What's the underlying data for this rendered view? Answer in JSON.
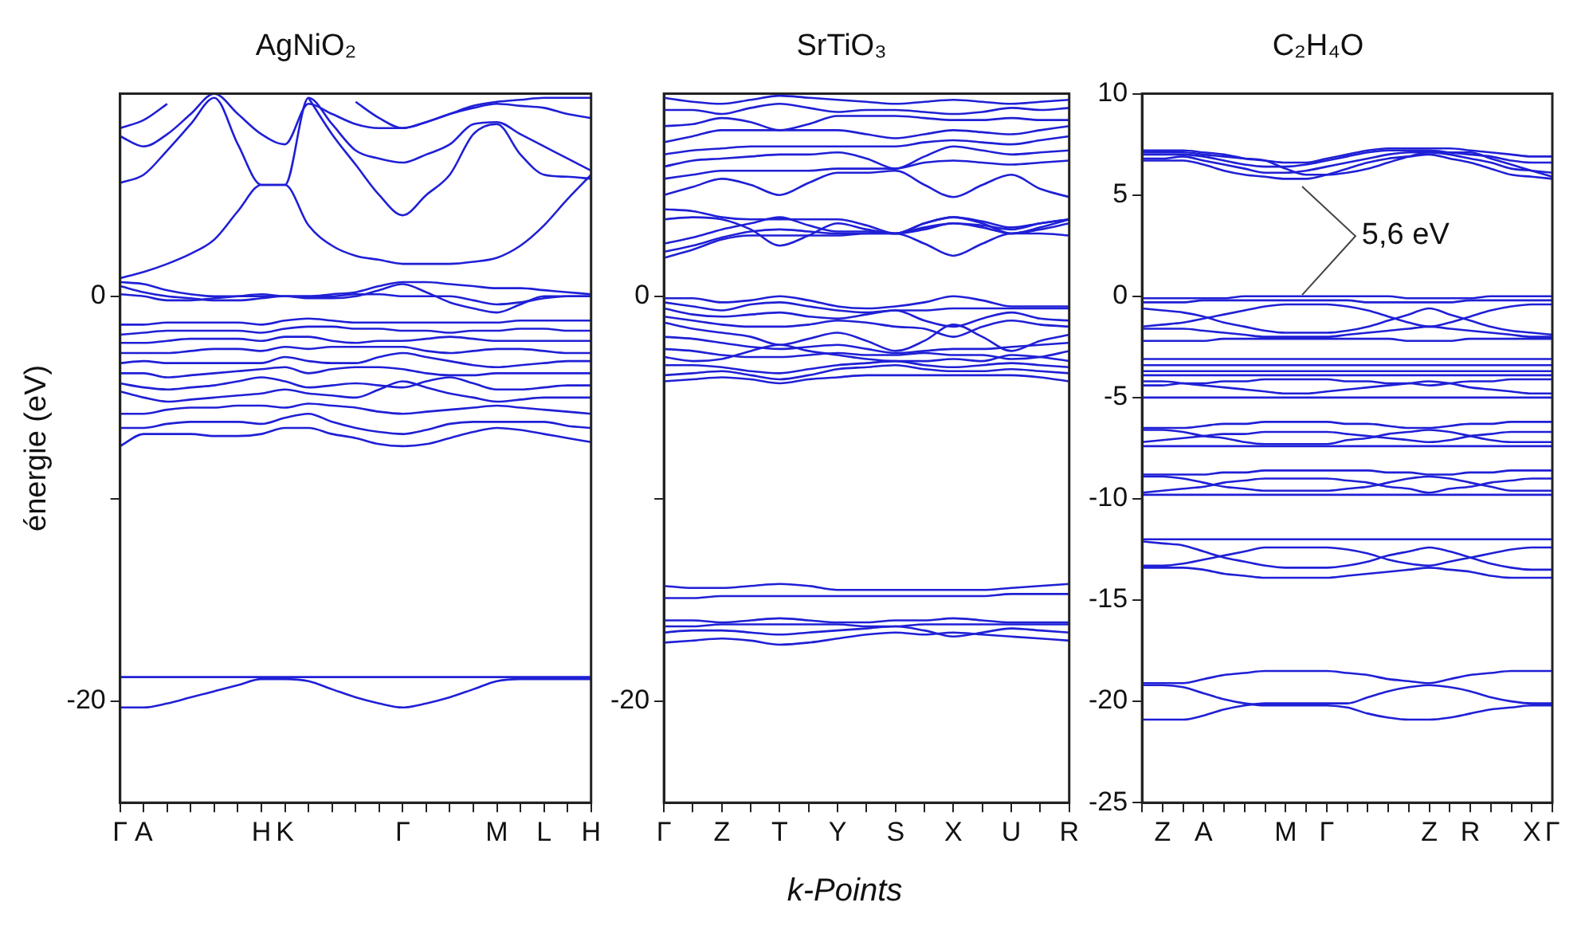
{
  "chart_data": [
    {
      "type": "line",
      "title": "AgNiO₂",
      "ylabel": "énergie (eV)",
      "marker": "none",
      "line_style": "solid",
      "ylim": [
        -25,
        10
      ],
      "categories": [
        "Γ",
        "A",
        null,
        null,
        null,
        null,
        "H",
        "K",
        null,
        null,
        null,
        null,
        "Γ",
        null,
        null,
        null,
        "M",
        null,
        "L",
        null,
        "H"
      ],
      "yticks": [
        -20,
        {
          "value": -10,
          "label": null
        },
        0
      ],
      "series": [
        {
          "color": "#1f1fd6",
          "values": [
            -18.8,
            -18.8,
            -18.8,
            -18.8,
            -18.8,
            -18.8,
            -18.8,
            -18.8,
            -18.8,
            -18.8,
            -18.8,
            -18.8,
            -18.8,
            -18.8,
            -18.8,
            -18.8,
            -18.8,
            -18.8,
            -18.8,
            -18.8,
            -18.8
          ]
        },
        {
          "color": "#1f1fd6",
          "values": [
            -20.3,
            -20.3,
            -20.1,
            -19.8,
            -19.5,
            -19.2,
            -18.9,
            -18.9,
            -19.0,
            -19.4,
            -19.8,
            -20.1,
            -20.3,
            -20.1,
            -19.8,
            -19.4,
            -19.0,
            -18.9,
            -18.9,
            -18.9,
            -18.9
          ]
        },
        {
          "color": "#1f1fd6",
          "values": [
            -7.4,
            -6.8,
            -6.8,
            -6.8,
            -6.9,
            -6.9,
            -6.8,
            -6.5,
            -6.5,
            -6.8,
            -7.0,
            -7.3,
            -7.4,
            -7.3,
            -7.0,
            -6.7,
            -6.5,
            -6.6,
            -6.8,
            -7.0,
            -7.2
          ]
        },
        {
          "color": "#1f1fd6",
          "values": [
            -6.5,
            -6.5,
            -6.3,
            -6.2,
            -6.2,
            -6.2,
            -6.3,
            -6.0,
            -5.8,
            -6.2,
            -6.5,
            -6.7,
            -6.8,
            -6.6,
            -6.3,
            -6.2,
            -6.2,
            -6.2,
            -6.2,
            -6.4,
            -6.5
          ]
        },
        {
          "color": "#1f1fd6",
          "values": [
            -5.8,
            -5.8,
            -5.6,
            -5.5,
            -5.5,
            -5.4,
            -5.4,
            -5.5,
            -5.3,
            -5.4,
            -5.5,
            -5.7,
            -5.8,
            -5.7,
            -5.6,
            -5.5,
            -5.4,
            -5.5,
            -5.6,
            -5.7,
            -5.8
          ]
        },
        {
          "color": "#1f1fd6",
          "values": [
            -4.7,
            -5.0,
            -5.2,
            -5.1,
            -5.0,
            -4.9,
            -4.8,
            -4.6,
            -4.8,
            -4.9,
            -5.0,
            -4.6,
            -4.2,
            -4.5,
            -4.8,
            -5.0,
            -5.2,
            -5.1,
            -5.0,
            -5.0,
            -5.0
          ]
        },
        {
          "color": "#1f1fd6",
          "values": [
            -4.3,
            -4.5,
            -4.6,
            -4.5,
            -4.4,
            -4.2,
            -4.0,
            -4.2,
            -4.5,
            -4.4,
            -4.3,
            -4.4,
            -4.5,
            -4.2,
            -4.0,
            -4.3,
            -4.6,
            -4.6,
            -4.5,
            -4.4,
            -4.4
          ]
        },
        {
          "color": "#1f1fd6",
          "values": [
            -3.8,
            -3.8,
            -4.0,
            -3.9,
            -3.8,
            -3.7,
            -3.6,
            -3.5,
            -3.8,
            -3.6,
            -3.5,
            -3.5,
            -3.6,
            -3.8,
            -3.9,
            -3.9,
            -3.8,
            -3.8,
            -3.8,
            -3.8,
            -3.8
          ]
        },
        {
          "color": "#1f1fd6",
          "values": [
            -3.3,
            -3.2,
            -3.3,
            -3.3,
            -3.3,
            -3.3,
            -3.3,
            -3.0,
            -3.2,
            -3.3,
            -3.3,
            -3.0,
            -2.8,
            -3.0,
            -3.2,
            -3.4,
            -3.5,
            -3.4,
            -3.3,
            -3.2,
            -3.2
          ]
        },
        {
          "color": "#1f1fd6",
          "values": [
            -2.8,
            -2.8,
            -2.8,
            -2.7,
            -2.6,
            -2.6,
            -2.7,
            -2.5,
            -2.6,
            -2.5,
            -2.5,
            -2.5,
            -2.5,
            -2.7,
            -2.8,
            -2.7,
            -2.6,
            -2.6,
            -2.7,
            -2.8,
            -2.8
          ]
        },
        {
          "color": "#1f1fd6",
          "values": [
            -2.3,
            -2.3,
            -2.2,
            -2.1,
            -2.1,
            -2.1,
            -2.2,
            -2.0,
            -2.0,
            -2.2,
            -2.3,
            -2.2,
            -2.2,
            -2.1,
            -2.0,
            -2.1,
            -2.2,
            -2.2,
            -2.2,
            -2.2,
            -2.2
          ]
        },
        {
          "color": "#1f1fd6",
          "values": [
            -1.9,
            -1.8,
            -1.7,
            -1.7,
            -1.7,
            -1.7,
            -1.8,
            -1.6,
            -1.5,
            -1.5,
            -1.6,
            -1.6,
            -1.7,
            -1.7,
            -1.8,
            -1.7,
            -1.7,
            -1.6,
            -1.6,
            -1.7,
            -1.7
          ]
        },
        {
          "color": "#1f1fd6",
          "values": [
            -1.4,
            -1.4,
            -1.3,
            -1.3,
            -1.3,
            -1.3,
            -1.4,
            -1.2,
            -1.1,
            -1.2,
            -1.3,
            -1.3,
            -1.3,
            -1.3,
            -1.3,
            -1.3,
            -1.3,
            -1.2,
            -1.2,
            -1.2,
            -1.2
          ]
        },
        {
          "color": "#1f1fd6",
          "values": [
            0.7,
            0.6,
            0.3,
            0.1,
            0.0,
            0.0,
            0.0,
            0.0,
            0.0,
            0.1,
            0.2,
            0.5,
            0.7,
            0.7,
            0.6,
            0.5,
            0.4,
            0.4,
            0.3,
            0.2,
            0.1
          ]
        },
        {
          "color": "#1f1fd6",
          "values": [
            0.5,
            0.2,
            0.0,
            -0.1,
            -0.2,
            -0.2,
            -0.1,
            0.0,
            -0.1,
            -0.1,
            0.0,
            0.3,
            0.6,
            0.2,
            -0.3,
            -0.6,
            -0.8,
            -0.4,
            0.0,
            0.0,
            0.0
          ]
        },
        {
          "color": "#1f1fd6",
          "values": [
            0.1,
            0.0,
            -0.2,
            -0.2,
            -0.1,
            0.0,
            0.1,
            0.0,
            0.0,
            0.0,
            0.1,
            0.1,
            0.0,
            0.0,
            0.0,
            -0.2,
            -0.4,
            -0.3,
            -0.1,
            0.0,
            0.0
          ]
        },
        {
          "color": "#1f1fd6",
          "values": [
            0.9,
            1.2,
            1.6,
            2.1,
            2.8,
            4.2,
            5.5,
            5.5,
            3.5,
            2.5,
            2.0,
            1.8,
            1.6,
            1.6,
            1.6,
            1.7,
            1.9,
            2.5,
            3.5,
            4.8,
            6.0
          ]
        },
        {
          "color": "#1f1fd6",
          "values": [
            5.6,
            6.0,
            7.2,
            8.5,
            9.8,
            7.5,
            5.5,
            5.5,
            9.8,
            8.5,
            7.2,
            6.8,
            6.6,
            7.0,
            7.5,
            8.5,
            8.6,
            8.0,
            7.4,
            6.8,
            6.2
          ]
        },
        {
          "color": "#1f1fd6",
          "values": [
            7.9,
            7.4,
            8.0,
            9.0,
            10.0,
            9.0,
            8.0,
            7.5,
            9.5,
            9.0,
            8.5,
            8.3,
            8.3,
            8.6,
            9.0,
            9.3,
            9.5,
            9.4,
            9.3,
            9.0,
            8.8
          ]
        },
        {
          "color": "#1f1fd6",
          "values": [
            null,
            null,
            null,
            null,
            null,
            null,
            null,
            null,
            9.8,
            8.0,
            6.5,
            5.0,
            4.0,
            5.0,
            6.0,
            8.0,
            8.5,
            7.0,
            6.0,
            5.9,
            5.8
          ]
        },
        {
          "color": "#1f1fd6",
          "values": [
            8.3,
            8.7,
            9.5,
            null,
            null,
            null,
            null,
            null,
            null,
            null,
            9.6,
            8.8,
            8.3,
            8.6,
            9.0,
            9.4,
            9.6,
            9.7,
            9.8,
            9.8,
            9.8
          ]
        }
      ]
    },
    {
      "type": "line",
      "title": "SrTiO₃",
      "xlabel": "k-Points",
      "marker": "none",
      "line_style": "solid",
      "ylim": [
        -25,
        10
      ],
      "categories": [
        "Γ",
        null,
        "Z",
        null,
        "T",
        null,
        "Y",
        null,
        "S",
        null,
        "X",
        null,
        "U",
        null,
        "R"
      ],
      "yticks": [
        -20,
        {
          "value": -10,
          "label": null
        },
        0
      ],
      "series": [
        {
          "color": "#1f1fd6",
          "values": [
            -14.3,
            -14.4,
            -14.4,
            -14.3,
            -14.2,
            -14.3,
            -14.5,
            -14.5,
            -14.5,
            -14.5,
            -14.5,
            -14.5,
            -14.4,
            -14.3,
            -14.2
          ]
        },
        {
          "color": "#1f1fd6",
          "values": [
            -14.9,
            -14.9,
            -14.8,
            -14.8,
            -14.8,
            -14.8,
            -14.8,
            -14.8,
            -14.8,
            -14.8,
            -14.8,
            -14.8,
            -14.7,
            -14.7,
            -14.7
          ]
        },
        {
          "color": "#1f1fd6",
          "values": [
            -16.0,
            -16.0,
            -16.1,
            -16.0,
            -15.9,
            -16.0,
            -16.1,
            -16.1,
            -16.0,
            -16.0,
            -15.9,
            -16.0,
            -16.1,
            -16.1,
            -16.1
          ]
        },
        {
          "color": "#1f1fd6",
          "values": [
            -16.3,
            -16.3,
            -16.2,
            -16.2,
            -16.2,
            -16.2,
            -16.2,
            -16.3,
            -16.3,
            -16.2,
            -16.2,
            -16.2,
            -16.2,
            -16.2,
            -16.2
          ]
        },
        {
          "color": "#1f1fd6",
          "values": [
            -16.6,
            -16.5,
            -16.5,
            -16.6,
            -16.7,
            -16.6,
            -16.5,
            -16.4,
            -16.3,
            -16.5,
            -16.8,
            -16.6,
            -16.4,
            -16.5,
            -16.6
          ]
        },
        {
          "color": "#1f1fd6",
          "values": [
            -17.1,
            -17.0,
            -16.9,
            -17.0,
            -17.2,
            -17.1,
            -16.9,
            -16.7,
            -16.6,
            -16.7,
            -16.6,
            -16.7,
            -16.8,
            -16.9,
            -17.0
          ]
        },
        {
          "color": "#1f1fd6",
          "values": [
            -0.1,
            -0.1,
            -0.3,
            -0.2,
            0.0,
            -0.2,
            -0.5,
            -0.6,
            -0.5,
            -0.3,
            0.0,
            -0.2,
            -0.5,
            -0.5,
            -0.5
          ]
        },
        {
          "color": "#1f1fd6",
          "values": [
            -0.3,
            -0.5,
            -0.7,
            -0.4,
            -0.3,
            -0.5,
            -0.7,
            -0.8,
            -0.7,
            -0.7,
            -0.6,
            -0.6,
            -0.6,
            -0.6,
            -0.6
          ]
        },
        {
          "color": "#1f1fd6",
          "values": [
            -0.6,
            -0.9,
            -1.0,
            -0.9,
            -0.8,
            -1.0,
            -1.1,
            -0.9,
            -0.7,
            -1.2,
            -1.5,
            -1.1,
            -0.8,
            -1.1,
            -1.2
          ]
        },
        {
          "color": "#1f1fd6",
          "values": [
            -1.0,
            -1.2,
            -1.4,
            -1.5,
            -1.5,
            -1.4,
            -1.2,
            -1.3,
            -1.5,
            -1.6,
            -2.0,
            -1.5,
            -1.2,
            -1.4,
            -1.5
          ]
        },
        {
          "color": "#1f1fd6",
          "values": [
            -1.3,
            -1.6,
            -1.8,
            -2.0,
            -2.4,
            -2.1,
            -1.8,
            -2.2,
            -2.7,
            -2.2,
            -1.4,
            -2.0,
            -2.7,
            -2.2,
            -1.9
          ]
        },
        {
          "color": "#1f1fd6",
          "values": [
            -2.0,
            -2.1,
            -2.3,
            -2.5,
            -2.6,
            -2.5,
            -2.4,
            -2.6,
            -2.8,
            -2.7,
            -2.6,
            -2.6,
            -2.5,
            -2.4,
            -2.3
          ]
        },
        {
          "color": "#1f1fd6",
          "values": [
            -2.6,
            -2.7,
            -2.9,
            -3.0,
            -3.0,
            -2.9,
            -2.8,
            -2.9,
            -2.9,
            -2.8,
            -2.9,
            -2.9,
            -3.1,
            -3.0,
            -2.7
          ]
        },
        {
          "color": "#1f1fd6",
          "values": [
            -3.0,
            -3.2,
            -3.1,
            -2.7,
            -2.4,
            -2.7,
            -2.9,
            -3.1,
            -3.2,
            -3.2,
            -3.1,
            -3.2,
            -2.9,
            -3.0,
            -3.2
          ]
        },
        {
          "color": "#1f1fd6",
          "values": [
            -3.4,
            -3.4,
            -3.5,
            -3.7,
            -3.8,
            -3.6,
            -3.4,
            -3.3,
            -3.2,
            -3.4,
            -3.5,
            -3.4,
            -3.3,
            -3.4,
            -3.5
          ]
        },
        {
          "color": "#1f1fd6",
          "values": [
            -3.9,
            -3.8,
            -3.7,
            -3.9,
            -4.1,
            -3.9,
            -3.6,
            -3.5,
            -3.4,
            -3.6,
            -3.7,
            -3.7,
            -3.6,
            -3.7,
            -3.8
          ]
        },
        {
          "color": "#1f1fd6",
          "values": [
            -4.2,
            -4.1,
            -4.0,
            -4.1,
            -4.3,
            -4.1,
            -4.0,
            -3.9,
            -3.9,
            -3.9,
            -3.9,
            -3.9,
            -3.9,
            -4.0,
            -4.2
          ]
        },
        {
          "color": "#1f1fd6",
          "values": [
            1.9,
            2.3,
            2.8,
            3.0,
            3.0,
            3.0,
            3.0,
            3.1,
            3.1,
            2.6,
            2.0,
            2.6,
            3.1,
            3.1,
            3.0
          ]
        },
        {
          "color": "#1f1fd6",
          "values": [
            2.2,
            2.5,
            2.9,
            3.2,
            3.3,
            3.2,
            3.1,
            3.1,
            3.1,
            3.4,
            3.6,
            3.4,
            3.1,
            3.3,
            3.6
          ]
        },
        {
          "color": "#1f1fd6",
          "values": [
            2.6,
            2.9,
            3.3,
            3.6,
            3.9,
            3.5,
            3.2,
            3.2,
            3.1,
            3.6,
            3.9,
            3.6,
            3.1,
            3.4,
            3.8
          ]
        },
        {
          "color": "#1f1fd6",
          "values": [
            3.8,
            3.9,
            3.8,
            3.3,
            2.5,
            3.0,
            3.6,
            3.3,
            3.1,
            3.6,
            3.9,
            3.7,
            3.4,
            3.6,
            3.8
          ]
        },
        {
          "color": "#1f1fd6",
          "values": [
            4.3,
            4.2,
            3.9,
            3.8,
            3.8,
            3.8,
            3.8,
            3.5,
            3.1,
            3.3,
            3.6,
            3.5,
            3.3,
            3.6,
            3.8
          ]
        },
        {
          "color": "#1f1fd6",
          "values": [
            5.0,
            5.4,
            5.8,
            5.5,
            5.0,
            5.6,
            6.1,
            6.1,
            6.2,
            5.5,
            4.9,
            5.5,
            6.0,
            5.3,
            4.9
          ]
        },
        {
          "color": "#1f1fd6",
          "values": [
            5.8,
            6.0,
            6.2,
            6.2,
            6.2,
            6.2,
            6.3,
            6.3,
            6.3,
            6.6,
            6.7,
            6.6,
            6.5,
            6.6,
            6.7
          ]
        },
        {
          "color": "#1f1fd6",
          "values": [
            6.4,
            6.7,
            6.8,
            6.9,
            7.0,
            7.0,
            7.1,
            6.8,
            6.3,
            6.9,
            7.4,
            7.2,
            7.0,
            7.1,
            7.2
          ]
        },
        {
          "color": "#1f1fd6",
          "values": [
            7.0,
            7.2,
            7.3,
            7.4,
            7.4,
            7.4,
            7.4,
            7.4,
            7.4,
            7.6,
            7.7,
            7.6,
            7.5,
            7.7,
            7.9
          ]
        },
        {
          "color": "#1f1fd6",
          "values": [
            7.6,
            7.9,
            8.2,
            8.2,
            8.2,
            8.2,
            8.2,
            8.0,
            7.8,
            8.0,
            8.2,
            8.1,
            8.0,
            8.2,
            8.4
          ]
        },
        {
          "color": "#1f1fd6",
          "values": [
            8.4,
            8.5,
            8.8,
            8.6,
            8.2,
            8.5,
            8.9,
            8.9,
            8.9,
            8.8,
            8.7,
            8.7,
            8.8,
            8.7,
            8.7
          ]
        },
        {
          "color": "#1f1fd6",
          "values": [
            9.2,
            9.2,
            9.0,
            9.3,
            9.5,
            9.3,
            9.1,
            9.2,
            9.2,
            9.1,
            9.0,
            9.1,
            9.3,
            9.2,
            9.3
          ]
        },
        {
          "color": "#1f1fd6",
          "values": [
            9.8,
            9.6,
            9.5,
            9.7,
            9.9,
            9.8,
            9.7,
            9.6,
            9.5,
            9.6,
            9.7,
            9.6,
            9.5,
            9.6,
            9.7
          ]
        }
      ]
    },
    {
      "type": "line",
      "title": "C₂H₄O",
      "marker": "none",
      "line_style": "solid",
      "ylim": [
        -25,
        10
      ],
      "annotations": [
        "5,6 eV"
      ],
      "categories": [
        null,
        "Z",
        null,
        "A",
        null,
        null,
        null,
        "M",
        null,
        "Γ",
        null,
        null,
        null,
        null,
        "Z",
        null,
        "R",
        null,
        null,
        "X",
        "Γ"
      ],
      "yticks": [
        10,
        5,
        0,
        -5,
        -10,
        -15,
        -20,
        -25
      ],
      "series": [
        {
          "color": "#1f1fd6",
          "values": [
            -19.1,
            -19.1,
            -19.1,
            -18.9,
            -18.7,
            -18.6,
            -18.5,
            -18.5,
            -18.5,
            -18.5,
            -18.6,
            -18.7,
            -18.9,
            -19.0,
            -19.1,
            -18.9,
            -18.7,
            -18.6,
            -18.5,
            -18.5,
            -18.5
          ]
        },
        {
          "color": "#1f1fd6",
          "values": [
            -20.9,
            -20.9,
            -20.9,
            -20.7,
            -20.4,
            -20.2,
            -20.1,
            -20.1,
            -20.1,
            -20.1,
            -20.1,
            -19.8,
            -19.5,
            -19.3,
            -19.2,
            -19.3,
            -19.5,
            -19.8,
            -20.0,
            -20.1,
            -20.1
          ]
        },
        {
          "color": "#1f1fd6",
          "values": [
            -19.2,
            -19.2,
            -19.3,
            -19.6,
            -19.9,
            -20.1,
            -20.2,
            -20.2,
            -20.2,
            -20.2,
            -20.3,
            -20.6,
            -20.8,
            -20.9,
            -20.9,
            -20.8,
            -20.6,
            -20.4,
            -20.3,
            -20.2,
            -20.2
          ]
        },
        {
          "color": "#1f1fd6",
          "values": [
            -12.0,
            -12.0,
            -12.0,
            -12.0,
            -12.0,
            -12.0,
            -12.0,
            -12.0,
            -12.0,
            -12.0,
            -12.0,
            -12.0,
            -12.0,
            -12.0,
            -12.0,
            -12.0,
            -12.0,
            -12.0,
            -12.0,
            -12.0,
            -12.0
          ]
        },
        {
          "color": "#1f1fd6",
          "values": [
            -13.3,
            -13.3,
            -13.2,
            -13.0,
            -12.8,
            -12.6,
            -12.4,
            -12.4,
            -12.4,
            -12.4,
            -12.5,
            -12.7,
            -13.0,
            -13.2,
            -13.3,
            -13.1,
            -12.9,
            -12.7,
            -12.5,
            -12.4,
            -12.4
          ]
        },
        {
          "color": "#1f1fd6",
          "values": [
            -12.1,
            -12.2,
            -12.3,
            -12.6,
            -12.9,
            -13.1,
            -13.3,
            -13.4,
            -13.4,
            -13.4,
            -13.3,
            -13.1,
            -12.8,
            -12.6,
            -12.4,
            -12.6,
            -12.9,
            -13.2,
            -13.4,
            -13.5,
            -13.5
          ]
        },
        {
          "color": "#1f1fd6",
          "values": [
            -13.4,
            -13.4,
            -13.4,
            -13.5,
            -13.7,
            -13.8,
            -13.9,
            -13.9,
            -13.9,
            -13.9,
            -13.8,
            -13.7,
            -13.6,
            -13.5,
            -13.4,
            -13.5,
            -13.6,
            -13.8,
            -13.9,
            -13.9,
            -13.9
          ]
        },
        {
          "color": "#1f1fd6",
          "values": [
            -8.8,
            -8.8,
            -8.8,
            -8.8,
            -8.7,
            -8.7,
            -8.6,
            -8.6,
            -8.6,
            -8.6,
            -8.6,
            -8.6,
            -8.7,
            -8.7,
            -8.8,
            -8.8,
            -8.7,
            -8.7,
            -8.6,
            -8.6,
            -8.6
          ]
        },
        {
          "color": "#1f1fd6",
          "values": [
            -9.7,
            -9.6,
            -9.5,
            -9.4,
            -9.2,
            -9.1,
            -9.0,
            -9.0,
            -9.0,
            -9.0,
            -9.1,
            -9.2,
            -9.4,
            -9.5,
            -9.7,
            -9.5,
            -9.4,
            -9.2,
            -9.1,
            -9.0,
            -9.0
          ]
        },
        {
          "color": "#1f1fd6",
          "values": [
            -8.9,
            -8.9,
            -9.0,
            -9.2,
            -9.4,
            -9.5,
            -9.6,
            -9.6,
            -9.6,
            -9.6,
            -9.5,
            -9.4,
            -9.2,
            -9.0,
            -8.9,
            -9.0,
            -9.2,
            -9.4,
            -9.6,
            -9.6,
            -9.6
          ]
        },
        {
          "color": "#1f1fd6",
          "values": [
            -9.8,
            -9.8,
            -9.8,
            -9.8,
            -9.8,
            -9.8,
            -9.8,
            -9.8,
            -9.8,
            -9.8,
            -9.8,
            -9.8,
            -9.8,
            -9.8,
            -9.8,
            -9.8,
            -9.8,
            -9.8,
            -9.8,
            -9.8,
            -9.8
          ]
        },
        {
          "color": "#1f1fd6",
          "values": [
            -6.5,
            -6.5,
            -6.5,
            -6.4,
            -6.3,
            -6.3,
            -6.2,
            -6.2,
            -6.2,
            -6.2,
            -6.3,
            -6.3,
            -6.4,
            -6.5,
            -6.5,
            -6.4,
            -6.3,
            -6.3,
            -6.2,
            -6.2,
            -6.2
          ]
        },
        {
          "color": "#1f1fd6",
          "values": [
            -7.2,
            -7.1,
            -7.0,
            -6.9,
            -6.8,
            -6.8,
            -6.7,
            -6.7,
            -6.7,
            -6.7,
            -6.8,
            -6.9,
            -7.0,
            -7.1,
            -7.2,
            -7.1,
            -6.9,
            -6.8,
            -6.7,
            -6.7,
            -6.7
          ]
        },
        {
          "color": "#1f1fd6",
          "values": [
            -6.6,
            -6.6,
            -6.7,
            -6.9,
            -7.0,
            -7.2,
            -7.3,
            -7.3,
            -7.3,
            -7.3,
            -7.1,
            -7.0,
            -6.8,
            -6.7,
            -6.6,
            -6.7,
            -6.9,
            -7.1,
            -7.2,
            -7.2,
            -7.2
          ]
        },
        {
          "color": "#1f1fd6",
          "values": [
            -7.4,
            -7.4,
            -7.4,
            -7.4,
            -7.4,
            -7.4,
            -7.4,
            -7.4,
            -7.4,
            -7.4,
            -7.4,
            -7.4,
            -7.4,
            -7.4,
            -7.4,
            -7.4,
            -7.4,
            -7.4,
            -7.4,
            -7.4,
            -7.4
          ]
        },
        {
          "color": "#1f1fd6",
          "values": [
            -4.2,
            -4.2,
            -4.3,
            -4.4,
            -4.5,
            -4.6,
            -4.7,
            -4.8,
            -4.8,
            -4.7,
            -4.6,
            -4.5,
            -4.4,
            -4.3,
            -4.2,
            -4.3,
            -4.5,
            -4.6,
            -4.7,
            -4.8,
            -4.8
          ]
        },
        {
          "color": "#1f1fd6",
          "values": [
            -5.0,
            -5.0,
            -5.0,
            -5.0,
            -5.0,
            -5.0,
            -5.0,
            -5.0,
            -5.0,
            -5.0,
            -5.0,
            -5.0,
            -5.0,
            -5.0,
            -5.0,
            -5.0,
            -5.0,
            -5.0,
            -5.0,
            -5.0,
            -5.0
          ]
        },
        {
          "color": "#1f1fd6",
          "values": [
            -4.4,
            -4.4,
            -4.3,
            -4.3,
            -4.2,
            -4.2,
            -4.1,
            -4.1,
            -4.1,
            -4.1,
            -4.2,
            -4.2,
            -4.3,
            -4.3,
            -4.4,
            -4.3,
            -4.2,
            -4.2,
            -4.1,
            -4.1,
            -4.1
          ]
        },
        {
          "color": "#1f1fd6",
          "values": [
            -3.7,
            -3.7,
            -3.7,
            -3.7,
            -3.7,
            -3.7,
            -3.7,
            -3.7,
            -3.7,
            -3.7,
            -3.7,
            -3.7,
            -3.7,
            -3.7,
            -3.7,
            -3.7,
            -3.7,
            -3.7,
            -3.7,
            -3.7,
            -3.7
          ]
        },
        {
          "color": "#1f1fd6",
          "values": [
            -3.4,
            -3.4,
            -3.4,
            -3.4,
            -3.4,
            -3.4,
            -3.4,
            -3.4,
            -3.4,
            -3.4,
            -3.4,
            -3.4,
            -3.4,
            -3.4,
            -3.4,
            -3.4,
            -3.4,
            -3.4,
            -3.4,
            -3.4,
            -3.4
          ]
        },
        {
          "color": "#1f1fd6",
          "values": [
            -3.1,
            -3.1,
            -3.1,
            -3.1,
            -3.1,
            -3.1,
            -3.1,
            -3.1,
            -3.1,
            -3.1,
            -3.1,
            -3.1,
            -3.1,
            -3.1,
            -3.1,
            -3.1,
            -3.1,
            -3.1,
            -3.1,
            -3.1,
            -3.1
          ]
        },
        {
          "color": "#1f1fd6",
          "values": [
            -3.9,
            -3.9,
            -3.9,
            -3.9,
            -3.9,
            -3.9,
            -3.9,
            -3.9,
            -3.9,
            -3.9,
            -3.9,
            -3.9,
            -3.9,
            -3.9,
            -3.9,
            -3.9,
            -3.9,
            -3.9,
            -3.9,
            -3.9,
            -3.9
          ]
        },
        {
          "color": "#1f1fd6",
          "values": [
            -0.1,
            -0.1,
            -0.1,
            -0.1,
            -0.1,
            0.0,
            0.0,
            0.0,
            0.0,
            0.0,
            0.0,
            0.0,
            0.0,
            -0.1,
            -0.1,
            -0.1,
            -0.1,
            0.0,
            0.0,
            0.0,
            0.0
          ]
        },
        {
          "color": "#1f1fd6",
          "values": [
            -0.3,
            -0.3,
            -0.3,
            -0.2,
            -0.2,
            -0.2,
            -0.2,
            -0.2,
            -0.2,
            -0.2,
            -0.2,
            -0.3,
            -0.3,
            -0.3,
            -0.3,
            -0.3,
            -0.2,
            -0.2,
            -0.2,
            -0.2,
            -0.2
          ]
        },
        {
          "color": "#1f1fd6",
          "values": [
            -0.6,
            -0.7,
            -0.8,
            -1.0,
            -1.3,
            -1.5,
            -1.7,
            -1.8,
            -1.8,
            -1.8,
            -1.7,
            -1.5,
            -1.2,
            -0.9,
            -0.6,
            -0.9,
            -1.2,
            -1.5,
            -1.7,
            -1.8,
            -1.9
          ]
        },
        {
          "color": "#1f1fd6",
          "values": [
            -1.5,
            -1.4,
            -1.3,
            -1.1,
            -0.9,
            -0.7,
            -0.5,
            -0.4,
            -0.4,
            -0.4,
            -0.5,
            -0.7,
            -1.0,
            -1.3,
            -1.5,
            -1.3,
            -1.0,
            -0.7,
            -0.5,
            -0.4,
            -0.4
          ]
        },
        {
          "color": "#1f1fd6",
          "values": [
            -1.6,
            -1.6,
            -1.6,
            -1.7,
            -1.8,
            -1.9,
            -2.0,
            -2.0,
            -2.0,
            -2.0,
            -1.9,
            -1.8,
            -1.7,
            -1.6,
            -1.5,
            -1.6,
            -1.7,
            -1.8,
            -1.9,
            -2.0,
            -2.0
          ]
        },
        {
          "color": "#1f1fd6",
          "values": [
            -2.2,
            -2.2,
            -2.2,
            -2.2,
            -2.1,
            -2.1,
            -2.1,
            -2.1,
            -2.1,
            -2.1,
            -2.1,
            -2.1,
            -2.1,
            -2.2,
            -2.2,
            -2.2,
            -2.1,
            -2.1,
            -2.1,
            -2.1,
            -2.1
          ]
        },
        {
          "color": "#1f1fd6",
          "values": [
            7.2,
            7.2,
            7.2,
            7.1,
            7.0,
            6.8,
            6.7,
            6.6,
            6.6,
            6.8,
            7.0,
            7.2,
            7.3,
            7.3,
            7.3,
            7.3,
            7.2,
            7.1,
            7.0,
            6.9,
            6.9
          ]
        },
        {
          "color": "#1f1fd6",
          "values": [
            7.0,
            7.0,
            7.0,
            6.9,
            6.7,
            6.5,
            6.4,
            6.4,
            6.5,
            6.7,
            6.9,
            7.1,
            7.2,
            7.2,
            7.2,
            7.1,
            7.0,
            6.9,
            6.7,
            6.6,
            6.6
          ]
        },
        {
          "color": "#1f1fd6",
          "values": [
            6.8,
            6.8,
            6.9,
            6.7,
            6.5,
            6.3,
            6.1,
            6.1,
            6.2,
            6.4,
            6.6,
            6.8,
            7.0,
            7.1,
            7.1,
            7.0,
            6.8,
            6.6,
            6.3,
            6.2,
            6.1
          ]
        },
        {
          "color": "#1f1fd6",
          "values": [
            6.7,
            6.7,
            6.7,
            6.5,
            6.2,
            6.0,
            5.9,
            5.8,
            5.8,
            6.0,
            6.3,
            6.6,
            6.8,
            6.9,
            7.0,
            6.8,
            6.6,
            6.3,
            6.0,
            5.9,
            5.8
          ]
        },
        {
          "color": "#1f1fd6",
          "values": [
            7.1,
            7.1,
            7.1,
            7.0,
            6.9,
            6.8,
            6.7,
            6.3,
            6.0,
            6.0,
            6.1,
            6.3,
            6.6,
            6.9,
            7.1,
            7.1,
            7.1,
            6.8,
            6.5,
            6.2,
            5.9
          ]
        }
      ]
    }
  ]
}
